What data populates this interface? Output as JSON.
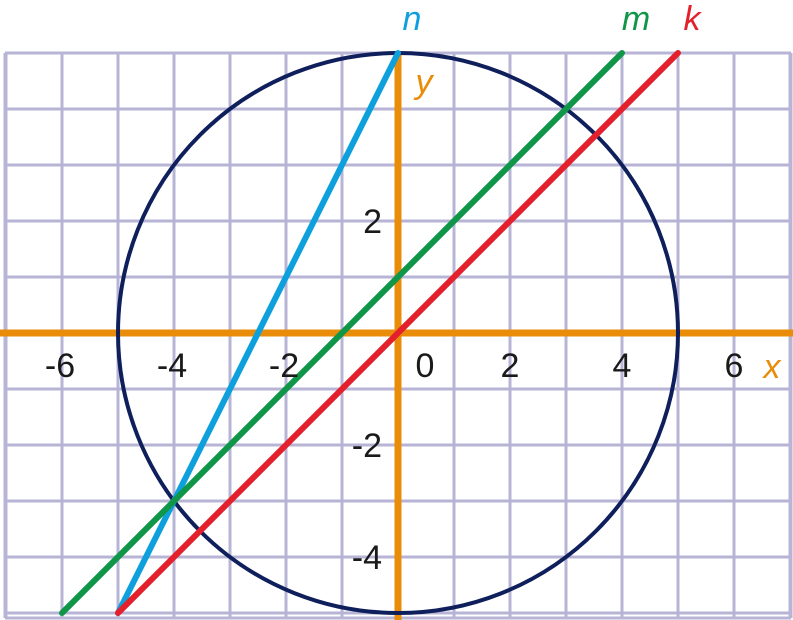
{
  "chart_data": {
    "type": "line",
    "xlim": [
      -7,
      7
    ],
    "ylim": [
      -5,
      5
    ],
    "grid": true,
    "x_ticks": [
      {
        "value": -6,
        "label": "-6"
      },
      {
        "value": -4,
        "label": "-4"
      },
      {
        "value": -2,
        "label": "-2"
      },
      {
        "value": 0,
        "label": "0"
      },
      {
        "value": 2,
        "label": "2"
      },
      {
        "value": 4,
        "label": "4"
      },
      {
        "value": 6,
        "label": "6"
      }
    ],
    "y_ticks": [
      {
        "value": 2,
        "label": "2"
      },
      {
        "value": -2,
        "label": "-2"
      },
      {
        "value": -4,
        "label": "-4"
      }
    ],
    "xlabel": "x",
    "ylabel": "y",
    "circle": {
      "center": [
        0,
        0
      ],
      "radius": 5,
      "color": "#0f1f5c"
    },
    "lines": [
      {
        "name": "n",
        "color": "#0ea0dd",
        "points": [
          [
            0,
            5
          ],
          [
            -5,
            -5
          ]
        ]
      },
      {
        "name": "m",
        "color": "#109648",
        "points": [
          [
            -6,
            -5
          ],
          [
            4,
            5
          ]
        ]
      },
      {
        "name": "k",
        "color": "#e3202b",
        "points": [
          [
            -5,
            -5
          ],
          [
            5,
            5
          ]
        ]
      }
    ],
    "colors": {
      "axis": "#e88c0a",
      "grid": "#b7b4d6"
    }
  }
}
